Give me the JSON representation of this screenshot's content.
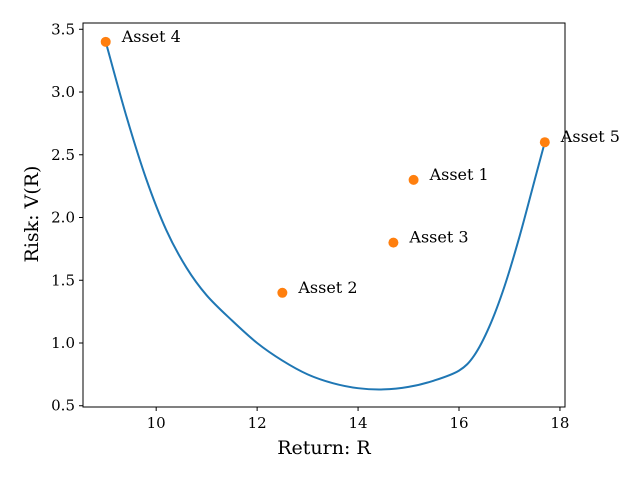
{
  "chart_data": {
    "type": "scatter",
    "title": "",
    "xlabel": "Return: R",
    "ylabel": "Risk: V(R)",
    "xlim": [
      8.55,
      18.1
    ],
    "ylim": [
      0.49,
      3.55
    ],
    "x_ticks": [
      10,
      12,
      14,
      16,
      18
    ],
    "y_ticks": [
      0.5,
      1.0,
      1.5,
      2.0,
      2.5,
      3.0,
      3.5
    ],
    "x_tick_labels": [
      "10",
      "12",
      "14",
      "16",
      "18"
    ],
    "y_tick_labels": [
      "0.5",
      "1.0",
      "1.5",
      "2.0",
      "2.5",
      "3.0",
      "3.5"
    ],
    "grid": false,
    "colors": {
      "curve": "#1f77b4",
      "points": "#ff7f0e"
    },
    "series": [
      {
        "type": "line",
        "x": [
          9.0,
          9.4,
          9.8,
          10.2,
          10.6,
          11.0,
          11.5,
          12.0,
          12.5,
          13.0,
          13.5,
          14.0,
          14.5,
          15.0,
          15.5,
          16.0,
          16.3,
          16.6,
          16.9,
          17.2,
          17.5,
          17.7
        ],
        "y": [
          3.4,
          2.82,
          2.31,
          1.9,
          1.6,
          1.38,
          1.18,
          1.0,
          0.86,
          0.75,
          0.68,
          0.64,
          0.63,
          0.65,
          0.7,
          0.78,
          0.9,
          1.13,
          1.45,
          1.85,
          2.3,
          2.6
        ]
      },
      {
        "type": "scatter",
        "points": [
          {
            "label": "Asset 1",
            "x": 15.1,
            "y": 2.3
          },
          {
            "label": "Asset 2",
            "x": 12.5,
            "y": 1.4
          },
          {
            "label": "Asset 3",
            "x": 14.7,
            "y": 1.8
          },
          {
            "label": "Asset 4",
            "x": 9.0,
            "y": 3.4
          },
          {
            "label": "Asset 5",
            "x": 17.7,
            "y": 2.6
          }
        ]
      }
    ]
  }
}
